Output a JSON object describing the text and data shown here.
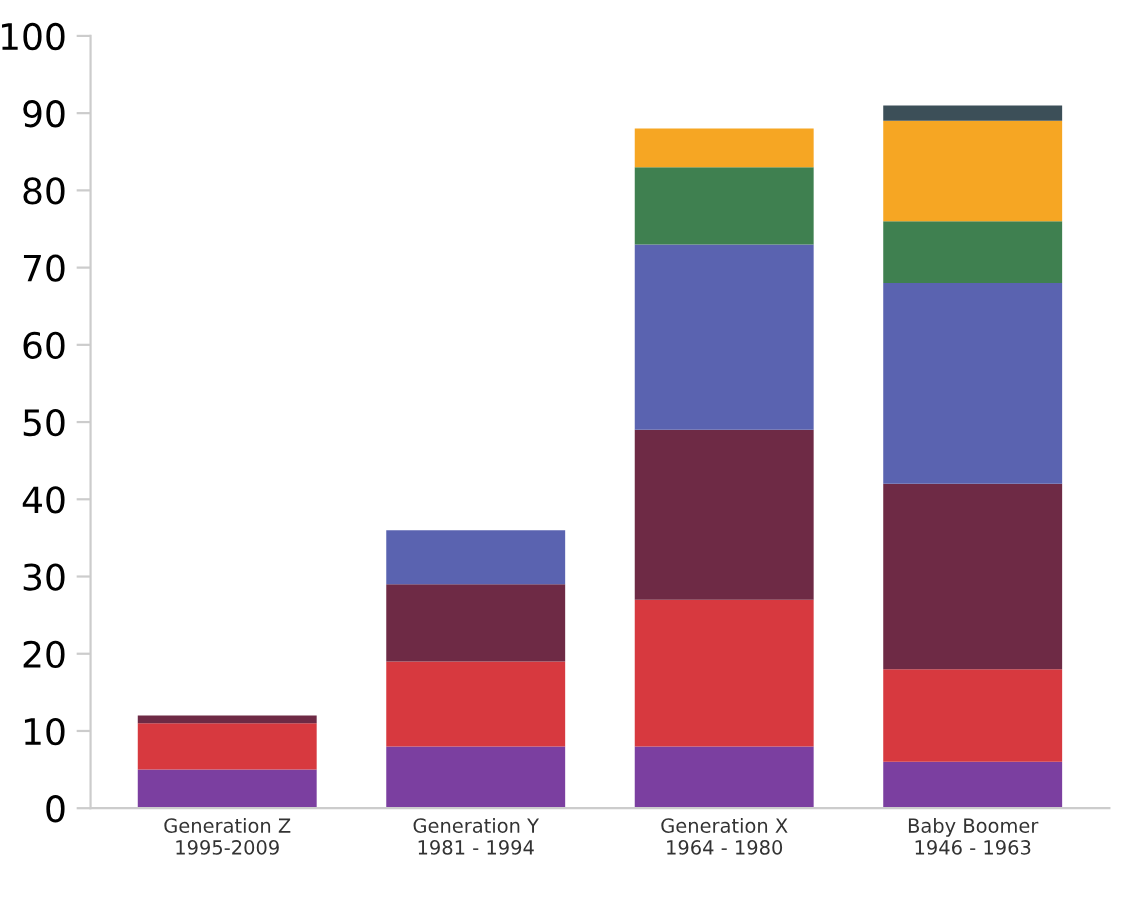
{
  "chart_data": {
    "type": "bar",
    "stacked": true,
    "categories": [
      "Generation Z\n1995-2009",
      "Generation Y\n1981 - 1994",
      "Generation X\n1964 - 1980",
      "Baby Boomer\n1946 - 1963"
    ],
    "series": [
      {
        "color": "#7b3fa0",
        "values": [
          5,
          8,
          8,
          6
        ]
      },
      {
        "color": "#d7393f",
        "values": [
          6,
          11,
          19,
          12
        ]
      },
      {
        "color": "#6e2a45",
        "values": [
          1,
          10,
          22,
          24
        ]
      },
      {
        "color": "#5a63b0",
        "values": [
          null,
          7,
          24,
          26
        ]
      },
      {
        "color": "#3f8050",
        "values": [
          null,
          null,
          10,
          8
        ]
      },
      {
        "color": "#f6a623",
        "values": [
          null,
          null,
          5,
          13
        ]
      },
      {
        "color": "#3c4f58",
        "values": [
          null,
          null,
          null,
          2
        ]
      }
    ],
    "ylim": [
      0,
      100
    ],
    "yticks": [
      0,
      10,
      20,
      30,
      40,
      50,
      60,
      70,
      80,
      90,
      100
    ],
    "grid": false,
    "legend": false
  }
}
